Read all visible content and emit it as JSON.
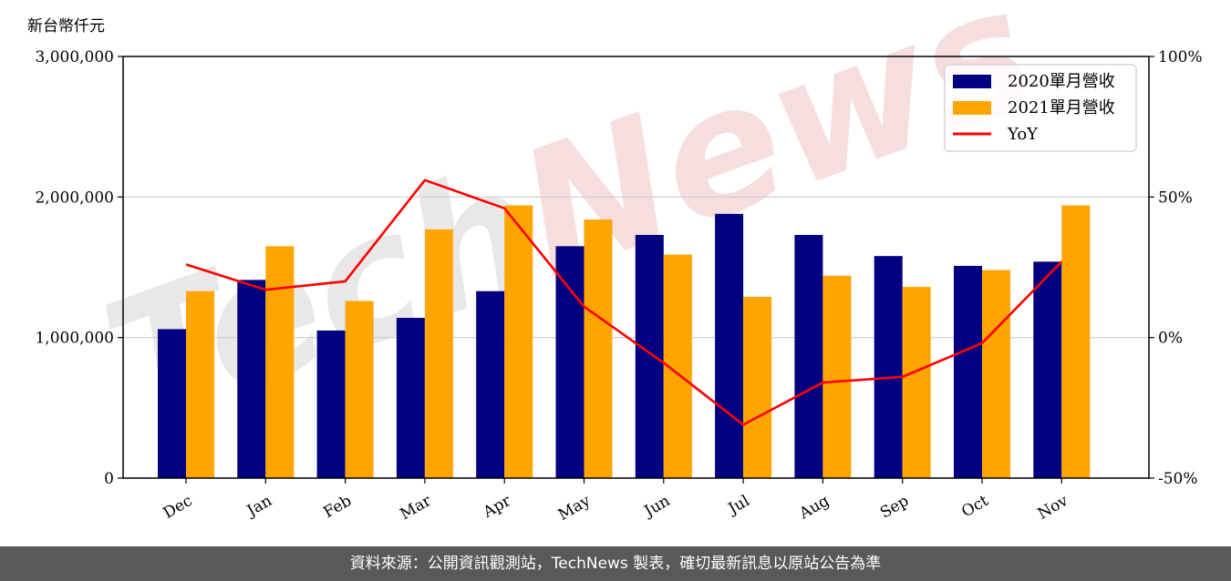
{
  "chart_data": {
    "type": "bar",
    "categories": [
      "Dec",
      "Jan",
      "Feb",
      "Mar",
      "Apr",
      "May",
      "Jun",
      "Jul",
      "Aug",
      "Sep",
      "Oct",
      "Nov"
    ],
    "series": [
      {
        "name": "2020單月營收",
        "type": "bar",
        "axis": "left",
        "color": "#000080",
        "values": [
          1060000,
          1410000,
          1050000,
          1140000,
          1330000,
          1650000,
          1730000,
          1880000,
          1730000,
          1580000,
          1510000,
          1540000
        ]
      },
      {
        "name": "2021單月營收",
        "type": "bar",
        "axis": "left",
        "color": "#ffa500",
        "values": [
          1330000,
          1650000,
          1260000,
          1770000,
          1940000,
          1840000,
          1590000,
          1290000,
          1440000,
          1360000,
          1480000,
          1940000
        ]
      },
      {
        "name": "YoY",
        "type": "line",
        "axis": "right",
        "color": "#ff0000",
        "values": [
          26,
          17,
          20,
          56,
          46,
          11,
          -9,
          -31,
          -16,
          -14,
          -2,
          27
        ]
      }
    ],
    "ylabel": "新台幣仟元",
    "ylim": [
      0,
      3000000
    ],
    "yticks": [
      "0",
      "1,000,000",
      "2,000,000",
      "3,000,000"
    ],
    "y2lim": [
      -50,
      100
    ],
    "y2ticks": [
      "-50%",
      "0%",
      "50%",
      "100%"
    ],
    "grid": "horizontal",
    "legend_position": "top-right"
  },
  "watermark": "TechNews",
  "footer": {
    "source_text": "資料來源：公開資訊觀測站，TechNews 製表，確切最新訊息以原站公告為準"
  }
}
